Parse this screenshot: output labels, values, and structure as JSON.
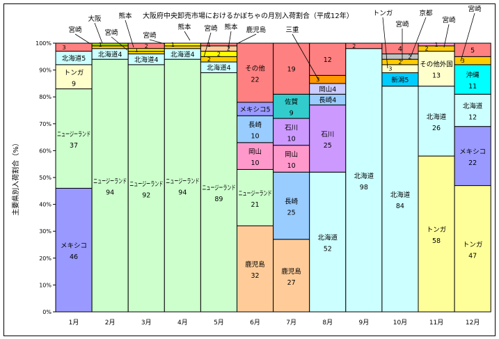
{
  "chart_data": {
    "type": "bar",
    "stacked": true,
    "title": "大阪府中央卸売市場におけるかぼちゃの月別入荷割合（平成12年）",
    "xlabel": "",
    "ylabel": "主要県別入荷割合（%）",
    "ylim": [
      0,
      100
    ],
    "yticks": [
      "0%",
      "10%",
      "20%",
      "30%",
      "40%",
      "50%",
      "60%",
      "70%",
      "80%",
      "90%",
      "100%"
    ],
    "categories": [
      "1月",
      "2月",
      "3月",
      "4月",
      "5月",
      "6月",
      "7月",
      "8月",
      "9月",
      "10月",
      "11月",
      "12月"
    ],
    "months": [
      {
        "segments": [
          {
            "name": "メキシコ",
            "value": 46,
            "color": "#9999ff",
            "label": "stack"
          },
          {
            "name": "ニュージーランド",
            "value": 37,
            "color": "#ccffcc",
            "label": "stack"
          },
          {
            "name": "トンガ",
            "value": 9,
            "color": "#ffffcc",
            "label": "stack"
          },
          {
            "name": "北海道",
            "value": 5,
            "color": "#ccffff",
            "label": "inline"
          },
          {
            "name": "宮崎",
            "value": 3,
            "color": "#ff8080",
            "label": "value"
          }
        ]
      },
      {
        "segments": [
          {
            "name": "ニュージーランド",
            "value": 94,
            "color": "#ccffcc",
            "label": "stack"
          },
          {
            "name": "北海道",
            "value": 4,
            "color": "#ccffff",
            "label": "inline"
          },
          {
            "name": "宮崎",
            "value": 1,
            "color": "#ffcc00",
            "label": "none"
          },
          {
            "name": "大阪",
            "value": 1,
            "color": "#99cc00",
            "label": "value"
          }
        ]
      },
      {
        "segments": [
          {
            "name": "ニュージーランド",
            "value": 92,
            "color": "#ccffcc",
            "label": "stack"
          },
          {
            "name": "北海道",
            "value": 4,
            "color": "#ccffff",
            "label": "inline"
          },
          {
            "name": "宮崎",
            "value": 1,
            "color": "#ffcc00",
            "label": "none"
          },
          {
            "name": "宮崎",
            "value": 1,
            "color": "#ffff00",
            "label": "value"
          },
          {
            "name": "熊本",
            "value": 2,
            "color": "#ff8080",
            "label": "value"
          }
        ]
      },
      {
        "segments": [
          {
            "name": "ニュージーランド",
            "value": 94,
            "color": "#ccffcc",
            "label": "stack"
          },
          {
            "name": "北海道",
            "value": 4,
            "color": "#ccffff",
            "label": "inline"
          },
          {
            "name": "宮崎",
            "value": 1,
            "color": "#ffcc00",
            "label": "none"
          },
          {
            "name": "熊本",
            "value": 1,
            "color": "#ffff00",
            "label": "value"
          }
        ]
      },
      {
        "segments": [
          {
            "name": "ニュージーランド",
            "value": 89,
            "color": "#ccffcc",
            "label": "stack"
          },
          {
            "name": "北海道",
            "value": 4,
            "color": "#ccffff",
            "label": "inline"
          },
          {
            "name": "宮崎",
            "value": 2,
            "color": "#ffcc00",
            "label": "value"
          },
          {
            "name": "宮崎",
            "value": 2,
            "color": "#ffff00",
            "label": "value"
          },
          {
            "name": "熊本",
            "value": 2,
            "color": "#ffcc99",
            "label": "value"
          },
          {
            "name": "鹿児島",
            "value": 1,
            "color": "#ff8080",
            "label": "value"
          }
        ]
      },
      {
        "segments": [
          {
            "name": "鹿児島",
            "value": 32,
            "color": "#ffcc99",
            "label": "stack"
          },
          {
            "name": "ニュージーランド",
            "value": 21,
            "color": "#ccffcc",
            "label": "stack"
          },
          {
            "name": "岡山",
            "value": 10,
            "color": "#ff99cc",
            "label": "stack"
          },
          {
            "name": "長崎",
            "value": 10,
            "color": "#99ccff",
            "label": "stack"
          },
          {
            "name": "メキシコ",
            "value": 5,
            "color": "#9999ff",
            "label": "inline"
          },
          {
            "name": "その他",
            "value": 22,
            "color": "#ff8080",
            "label": "stack"
          }
        ]
      },
      {
        "segments": [
          {
            "name": "鹿児島",
            "value": 27,
            "color": "#ffcc99",
            "label": "stack"
          },
          {
            "name": "長崎",
            "value": 25,
            "color": "#99ccff",
            "label": "stack"
          },
          {
            "name": "岡山",
            "value": 10,
            "color": "#ff99cc",
            "label": "stack"
          },
          {
            "name": "石川",
            "value": 10,
            "color": "#cc99ff",
            "label": "stack"
          },
          {
            "name": "佐賀",
            "value": 9,
            "color": "#33cccc",
            "label": "stack"
          },
          {
            "name": "その他",
            "value": 19,
            "color": "#ff8080",
            "label": "value"
          }
        ]
      },
      {
        "segments": [
          {
            "name": "北海道",
            "value": 52,
            "color": "#ccffff",
            "label": "stack"
          },
          {
            "name": "石川",
            "value": 25,
            "color": "#cc99ff",
            "label": "stack"
          },
          {
            "name": "長崎",
            "value": 4,
            "color": "#99ccff",
            "label": "inline"
          },
          {
            "name": "岡山",
            "value": 4,
            "color": "#ccccff",
            "label": "inline"
          },
          {
            "name": "三重",
            "value": 3,
            "color": "#ff9900",
            "label": "value"
          },
          {
            "name": "その他",
            "value": 12,
            "color": "#ff8080",
            "label": "value"
          }
        ]
      },
      {
        "segments": [
          {
            "name": "北海道",
            "value": 98,
            "color": "#ccffff",
            "label": "stack"
          },
          {
            "name": "その他",
            "value": 2,
            "color": "#ff8080",
            "label": "value"
          }
        ]
      },
      {
        "segments": [
          {
            "name": "北海道",
            "value": 84,
            "color": "#ccffff",
            "label": "stack"
          },
          {
            "name": "新潟",
            "value": 5,
            "color": "#00ccff",
            "label": "inline"
          },
          {
            "name": "トンガ",
            "value": 3,
            "color": "#ffffcc",
            "label": "value"
          },
          {
            "name": "宮崎",
            "value": 2,
            "color": "#ffcc00",
            "label": "value"
          },
          {
            "name": "京都",
            "value": 2,
            "color": "#c0c0c0",
            "label": "value"
          },
          {
            "name": "その他",
            "value": 4,
            "color": "#ff8080",
            "label": "value"
          }
        ]
      },
      {
        "segments": [
          {
            "name": "トンガ",
            "value": 58,
            "color": "#ffff99",
            "label": "stack"
          },
          {
            "name": "北海道",
            "value": 26,
            "color": "#ccffff",
            "label": "stack"
          },
          {
            "name": "その他外国",
            "value": 13,
            "color": "#ffffcc",
            "label": "stack"
          },
          {
            "name": "宮崎",
            "value": 2,
            "color": "#ffcc00",
            "label": "value"
          },
          {
            "name": "その他",
            "value": 1,
            "color": "#ff99cc",
            "label": "value"
          }
        ]
      },
      {
        "segments": [
          {
            "name": "トンガ",
            "value": 47,
            "color": "#ffff99",
            "label": "stack"
          },
          {
            "name": "メキシコ",
            "value": 22,
            "color": "#9999ff",
            "label": "stack"
          },
          {
            "name": "北海道",
            "value": 12,
            "color": "#ccffff",
            "label": "stack"
          },
          {
            "name": "沖縄",
            "value": 11,
            "color": "#00ffff",
            "label": "stack"
          },
          {
            "name": "宮崎",
            "value": 3,
            "color": "#ffcc00",
            "label": "value"
          },
          {
            "name": "その他",
            "value": 5,
            "color": "#ff8080",
            "label": "value"
          }
        ]
      }
    ],
    "annotations": [
      "宮崎",
      "大阪",
      "宮崎",
      "熊本",
      "宮崎",
      "熊本",
      "宮崎",
      "熊本",
      "鹿児島",
      "三重",
      "トンガ",
      "宮崎",
      "京都",
      "宮崎",
      "宮崎"
    ],
    "grid": false,
    "legend": "none"
  }
}
